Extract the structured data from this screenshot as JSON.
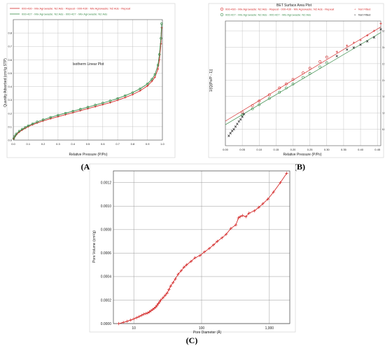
{
  "colors": {
    "red": "#d42a2a",
    "green": "#3a8c4a",
    "black": "#202020",
    "grid": "#b8b8b8"
  },
  "chart_data": [
    {
      "id": "A",
      "panel_label": "(A)",
      "type": "line",
      "title": "Isotherm Linear Plot",
      "xlabel": "Relative Pressure (P/Po)",
      "ylabel": "Quantity Adsorbed (cm³/g STP)",
      "xlim": [
        0.0,
        1.0
      ],
      "ylim": [
        0.0,
        0.9
      ],
      "xticks": [
        "0.0",
        "0.1",
        "0.2",
        "0.3",
        "0.4",
        "0.5",
        "0.6",
        "0.7",
        "0.8",
        "0.9",
        "1.0"
      ],
      "yticks": [
        "0.0",
        "0.1",
        "0.2",
        "0.3",
        "0.4",
        "0.5",
        "0.6",
        "0.7",
        "0.8"
      ],
      "ytick_values": [
        0,
        0.1,
        0.2,
        0.3,
        0.4,
        0.5,
        0.6,
        0.7,
        0.8
      ],
      "grid": true,
      "legend": [
        "000-430 - Mix Agrowaste: N2 Ads - Repeat - 000-430 - Mix Agrowaste: N2 Ads - Repeat",
        "000-427 - Mix Agrowaste: N2 Ads - 000-427 - Mix Agrowaste: N2 Ads"
      ],
      "series": [
        {
          "x": [
            0.003,
            0.01,
            0.02,
            0.04,
            0.06,
            0.08,
            0.1,
            0.13,
            0.16,
            0.2,
            0.25,
            0.3,
            0.35,
            0.4,
            0.45,
            0.5,
            0.55,
            0.6,
            0.65,
            0.7,
            0.75,
            0.8,
            0.85,
            0.9,
            0.93,
            0.95,
            0.97,
            0.98,
            0.99,
            0.995
          ],
          "y": [
            0.01,
            0.025,
            0.04,
            0.06,
            0.075,
            0.088,
            0.1,
            0.115,
            0.128,
            0.143,
            0.16,
            0.175,
            0.19,
            0.205,
            0.22,
            0.235,
            0.25,
            0.265,
            0.28,
            0.298,
            0.318,
            0.34,
            0.368,
            0.405,
            0.44,
            0.47,
            0.53,
            0.6,
            0.72,
            0.84
          ]
        },
        {
          "x": [
            0.003,
            0.01,
            0.02,
            0.04,
            0.06,
            0.08,
            0.1,
            0.13,
            0.16,
            0.2,
            0.25,
            0.3,
            0.35,
            0.4,
            0.45,
            0.5,
            0.55,
            0.6,
            0.65,
            0.7,
            0.75,
            0.8,
            0.85,
            0.9,
            0.93,
            0.95,
            0.97,
            0.98,
            0.99,
            0.995
          ],
          "y": [
            0.012,
            0.03,
            0.046,
            0.067,
            0.082,
            0.095,
            0.107,
            0.122,
            0.136,
            0.152,
            0.17,
            0.186,
            0.201,
            0.216,
            0.231,
            0.246,
            0.262,
            0.277,
            0.293,
            0.311,
            0.332,
            0.355,
            0.383,
            0.42,
            0.455,
            0.49,
            0.56,
            0.64,
            0.76,
            0.87
          ]
        }
      ]
    },
    {
      "id": "B",
      "panel_label": "(B)",
      "type": "scatter",
      "title": "BET Surface Area Plot",
      "xlabel": "Relative Pressure (P/Po)",
      "ylabel": "1/[Q(Po/P - 1)]",
      "xlim": [
        0.0,
        0.46
      ],
      "ylim": [
        0.0,
        3.8
      ],
      "xticks": [
        "0.00",
        "0.05",
        "0.10",
        "0.15",
        "0.20",
        "0.25",
        "0.30",
        "0.35",
        "0.40",
        "0.45"
      ],
      "yticks": [
        "0.5",
        "1.0",
        "1.5",
        "2.0",
        "2.5",
        "3.0",
        "3.5"
      ],
      "ytick_values": [
        0.5,
        1,
        1.5,
        2,
        2.5,
        3,
        3.5
      ],
      "grid": true,
      "legend": [
        "000-430 - Mix Agrowaste: N2 Ads - Repeat - 000-430 - Mix Agrowaste: N2 Ads - Repeat",
        "Not Fitted",
        "000-427 - Mix Agrowaste: N2 Ads - 000-427 - Mix Agrowaste: N2 Ads",
        "Not Fitted"
      ],
      "series": [
        {
          "fitted": {
            "x": [
              0.05,
              0.08,
              0.1,
              0.13,
              0.16,
              0.18,
              0.2,
              0.23,
              0.25,
              0.28,
              0.3
            ],
            "y": [
              1.02,
              1.22,
              1.36,
              1.55,
              1.76,
              1.88,
              2.02,
              2.22,
              2.36,
              2.56,
              2.7
            ]
          },
          "not_fitted": {
            "x": [
              0.33,
              0.36,
              0.38,
              0.4,
              0.42,
              0.44,
              0.46
            ],
            "y": [
              2.86,
              3.05,
              3.14,
              3.22,
              3.36,
              3.5,
              3.72
            ]
          },
          "fit_line": [
            [
              0.0,
              0.75
            ],
            [
              0.46,
              3.62
            ]
          ]
        },
        {
          "fitted": {
            "x": [
              0.05,
              0.08,
              0.1,
              0.13,
              0.16,
              0.18,
              0.2,
              0.23,
              0.25,
              0.28,
              0.3
            ],
            "y": [
              0.94,
              1.12,
              1.25,
              1.44,
              1.63,
              1.76,
              1.88,
              2.08,
              2.2,
              2.4,
              2.53
            ]
          },
          "not_fitted": {
            "x": [
              0.01,
              0.015,
              0.02,
              0.025,
              0.03,
              0.035,
              0.04,
              0.045,
              0.05,
              0.055,
              0.33,
              0.36,
              0.38,
              0.4,
              0.42,
              0.44,
              0.46
            ],
            "y": [
              0.3,
              0.38,
              0.45,
              0.5,
              0.58,
              0.66,
              0.74,
              0.8,
              0.88,
              0.96,
              2.73,
              2.93,
              2.99,
              3.08,
              3.18,
              3.3,
              3.55
            ]
          },
          "fit_line": [
            [
              0.0,
              0.64
            ],
            [
              0.46,
              3.45
            ]
          ]
        }
      ]
    },
    {
      "id": "C",
      "panel_label": "(C)",
      "type": "line",
      "xlabel": "Pore Diameter (Å)",
      "ylabel": "Pore Volume (cm³/g)",
      "xscale": "log",
      "xlim": [
        5,
        2000
      ],
      "ylim": [
        0.0,
        0.0013
      ],
      "xticks": [
        "10",
        "100",
        "1,000"
      ],
      "xtick_values": [
        10,
        100,
        1000
      ],
      "yticks": [
        "0.0000",
        "0.0002",
        "0.0004",
        "0.0006",
        "0.0008",
        "0.0010",
        "0.0012"
      ],
      "ytick_values": [
        0,
        0.0002,
        0.0004,
        0.0006,
        0.0008,
        0.001,
        0.0012
      ],
      "grid": true,
      "series": [
        {
          "x": [
            6,
            7,
            8,
            9,
            10,
            11,
            12,
            13,
            14,
            15,
            16,
            17,
            18,
            19,
            20,
            21,
            22,
            23,
            24,
            25,
            27,
            29,
            31,
            33,
            35,
            38,
            41,
            45,
            50,
            55,
            60,
            70,
            80,
            95,
            110,
            130,
            150,
            170,
            200,
            230,
            270,
            320,
            350,
            370,
            400,
            450,
            500,
            600,
            700,
            800,
            950,
            1150,
            1450,
            1800
          ],
          "y": [
            0.0,
            1e-05,
            2e-05,
            3e-05,
            4e-05,
            5e-05,
            6e-05,
            7e-05,
            8e-05,
            8.5e-05,
            9e-05,
            0.0001,
            0.00011,
            0.00012,
            0.00013,
            0.00014,
            0.000155,
            0.00017,
            0.000185,
            0.0002,
            0.00022,
            0.00024,
            0.00026,
            0.00029,
            0.00032,
            0.00035,
            0.00038,
            0.00042,
            0.00045,
            0.00048,
            0.0005,
            0.00053,
            0.00056,
            0.00058,
            0.00061,
            0.00064,
            0.00067,
            0.0007,
            0.00073,
            0.00076,
            0.00081,
            0.00084,
            0.0009,
            0.00091,
            0.00092,
            0.00091,
            0.00094,
            0.00096,
            0.00099,
            0.00102,
            0.00106,
            0.00112,
            0.0012,
            0.00128
          ]
        }
      ]
    }
  ]
}
